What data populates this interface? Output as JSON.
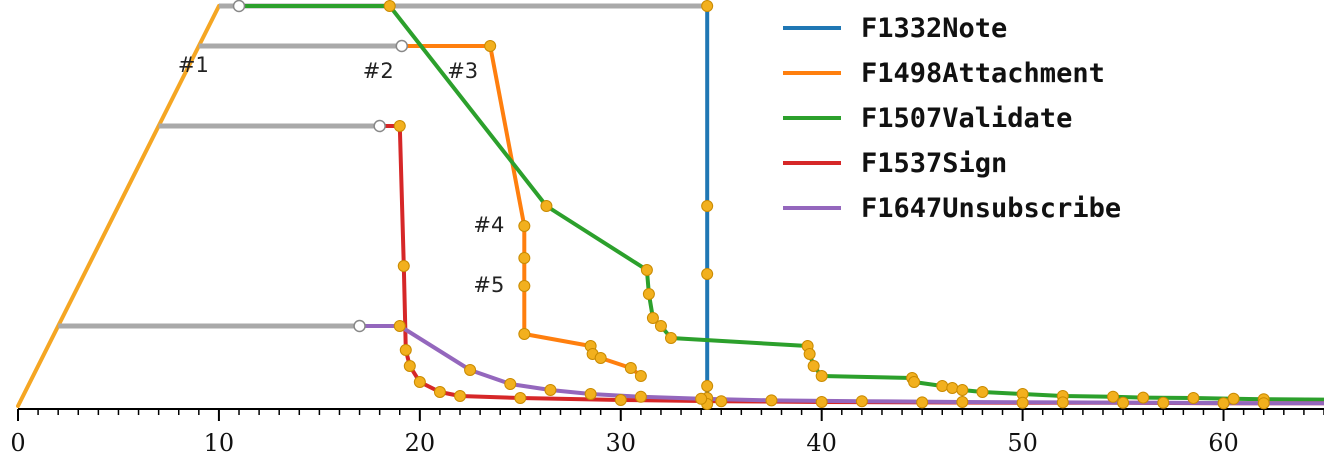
{
  "chart_data": {
    "type": "line",
    "title": "",
    "xlabel": "",
    "ylabel": "",
    "xlim": [
      0,
      65
    ],
    "x_ticks": [
      0,
      10,
      20,
      30,
      40,
      50,
      60
    ],
    "x_tick_labels": [
      "0",
      "10",
      "20",
      "30",
      "40",
      "50",
      "60"
    ],
    "y_axis_shown": false,
    "grid": false,
    "legend_position": "top-right",
    "colors": {
      "ramp": "#f5a623",
      "gray_segment": "#a9a9a9",
      "marker_fill": "#f2b01e",
      "marker_edge": "#c98a00",
      "open_marker": "#ffffff"
    },
    "ramp": {
      "x": [
        0,
        10
      ],
      "y": [
        0,
        100
      ]
    },
    "gray_segments": [
      {
        "y": 100,
        "x_start": 10,
        "x_open": 11,
        "x_end": 34.3
      },
      {
        "y": 90,
        "x_start": 9,
        "x_open": 19.1,
        "x_end": 19.1
      },
      {
        "y": 70,
        "x_start": 7,
        "x_open": 18,
        "x_end": 18
      },
      {
        "y": 20,
        "x_start": 2,
        "x_open": 17,
        "x_end": 17
      }
    ],
    "series": [
      {
        "name": "F1332Note",
        "color": "#1f77b4",
        "x": [
          34.3,
          34.3,
          34.3,
          34.3,
          34.3,
          34.3,
          34.3,
          34.3
        ],
        "y": [
          100,
          50,
          33,
          20,
          10,
          5,
          2,
          0.5
        ],
        "markers": [
          true,
          true,
          true,
          false,
          false,
          true,
          true,
          true
        ]
      },
      {
        "name": "F1498Attachment",
        "color": "#ff7f0e",
        "x": [
          19.1,
          23.5,
          25.2,
          25.2,
          25.2,
          25.2,
          28.5,
          28.6,
          29,
          30.5,
          31
        ],
        "y": [
          90,
          90,
          45,
          37,
          30,
          18,
          15,
          13,
          12,
          9.5,
          7.5
        ],
        "markers": [
          false,
          true,
          true,
          true,
          true,
          true,
          true,
          true,
          true,
          true,
          true
        ]
      },
      {
        "name": "F1507Validate",
        "color": "#2ca02c",
        "x": [
          11,
          18.5,
          26.3,
          31.3,
          31.4,
          31.6,
          32,
          32.5,
          39.3,
          39.4,
          39.6,
          40,
          44.5,
          44.6,
          46,
          46.5,
          47,
          48,
          50,
          52,
          54.5,
          56,
          58.5,
          60.5,
          62,
          65
        ],
        "y": [
          100,
          100,
          50,
          34,
          28,
          22,
          20,
          17,
          15,
          13,
          10,
          7.5,
          7,
          6,
          5,
          4.5,
          4,
          3.5,
          3,
          2.5,
          2.3,
          2.1,
          2,
          1.8,
          1.7,
          1.6
        ],
        "markers": [
          false,
          true,
          true,
          true,
          true,
          true,
          true,
          true,
          true,
          true,
          true,
          true,
          true,
          true,
          true,
          true,
          true,
          true,
          true,
          true,
          true,
          true,
          true,
          true,
          true,
          false
        ]
      },
      {
        "name": "F1537Sign",
        "color": "#d62728",
        "x": [
          18,
          19,
          19.2,
          19.3,
          19.5,
          20,
          21,
          22,
          25,
          30,
          35,
          40,
          45,
          50,
          55,
          60,
          65
        ],
        "y": [
          70,
          70,
          35,
          14,
          10,
          6,
          3.5,
          2.5,
          2,
          1.5,
          1.2,
          1,
          0.9,
          0.8,
          0.8,
          0.7,
          0.7
        ],
        "markers": [
          false,
          true,
          true,
          true,
          true,
          true,
          true,
          true,
          true,
          true,
          true,
          true,
          true,
          true,
          true,
          true,
          false
        ]
      },
      {
        "name": "F1647Unsubscribe",
        "color": "#9467bd",
        "x": [
          17,
          19,
          22.5,
          24.5,
          26.5,
          28.5,
          31,
          34,
          37.5,
          42,
          47,
          52,
          57,
          62,
          65
        ],
        "y": [
          20,
          20,
          9,
          5.5,
          4,
          3,
          2.3,
          1.8,
          1.4,
          1.2,
          1,
          0.9,
          0.8,
          0.7,
          0.7
        ],
        "markers": [
          false,
          true,
          true,
          true,
          true,
          true,
          true,
          true,
          true,
          true,
          true,
          true,
          true,
          true,
          false
        ]
      }
    ],
    "annotations": [
      {
        "text": "#1",
        "x": 9,
        "y": 90
      },
      {
        "text": "#2",
        "x": 19.1,
        "y": 90
      },
      {
        "text": "#3",
        "x": 23.5,
        "y": 90
      },
      {
        "text": "#4",
        "x": 25.2,
        "y": 45
      },
      {
        "text": "#5",
        "x": 25.2,
        "y": 30
      }
    ]
  }
}
